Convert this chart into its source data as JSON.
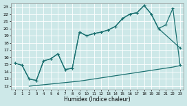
{
  "xlabel": "Humidex (Indice chaleur)",
  "bg_color": "#cde8e8",
  "grid_color": "#ffffff",
  "line_color": "#1a7070",
  "xlim": [
    -0.5,
    23.5
  ],
  "ylim": [
    11.5,
    23.5
  ],
  "xticks": [
    0,
    1,
    2,
    3,
    4,
    5,
    6,
    7,
    8,
    9,
    10,
    11,
    12,
    13,
    14,
    15,
    16,
    17,
    18,
    19,
    20,
    21,
    22,
    23
  ],
  "yticks": [
    12,
    13,
    14,
    15,
    16,
    17,
    18,
    19,
    20,
    21,
    22,
    23
  ],
  "line1_x": [
    0,
    1,
    2,
    3,
    4,
    5,
    6,
    7,
    8,
    9,
    10,
    11,
    12,
    13,
    14,
    15,
    16,
    17,
    18,
    19,
    20,
    23
  ],
  "line1_y": [
    15.2,
    14.9,
    13.0,
    12.8,
    15.5,
    15.8,
    16.5,
    14.3,
    14.5,
    19.5,
    19.0,
    19.3,
    19.5,
    19.8,
    20.3,
    21.4,
    22.0,
    22.2,
    23.2,
    22.0,
    20.0,
    17.3
  ],
  "line2_x": [
    0,
    1,
    2,
    3,
    4,
    5,
    6,
    7,
    8,
    9,
    10,
    11,
    12,
    13,
    14,
    15,
    16,
    17,
    18,
    19,
    20,
    21,
    22,
    23
  ],
  "line2_y": [
    15.2,
    14.9,
    13.0,
    12.8,
    15.5,
    15.8,
    16.5,
    14.3,
    14.5,
    19.5,
    19.0,
    19.3,
    19.5,
    19.8,
    20.3,
    21.4,
    22.0,
    22.2,
    23.2,
    22.0,
    20.0,
    20.5,
    22.8,
    14.9
  ],
  "line3_x": [
    2,
    3,
    4,
    5,
    6,
    7,
    8,
    9,
    10,
    11,
    12,
    13,
    14,
    15,
    16,
    17,
    18,
    19,
    20,
    21,
    22,
    23
  ],
  "line3_y": [
    12.0,
    12.1,
    12.2,
    12.3,
    12.4,
    12.5,
    12.6,
    12.7,
    12.85,
    13.0,
    13.15,
    13.3,
    13.45,
    13.6,
    13.75,
    13.9,
    14.05,
    14.2,
    14.35,
    14.5,
    14.65,
    14.85
  ],
  "marker_size": 3.0,
  "linewidth": 0.9
}
